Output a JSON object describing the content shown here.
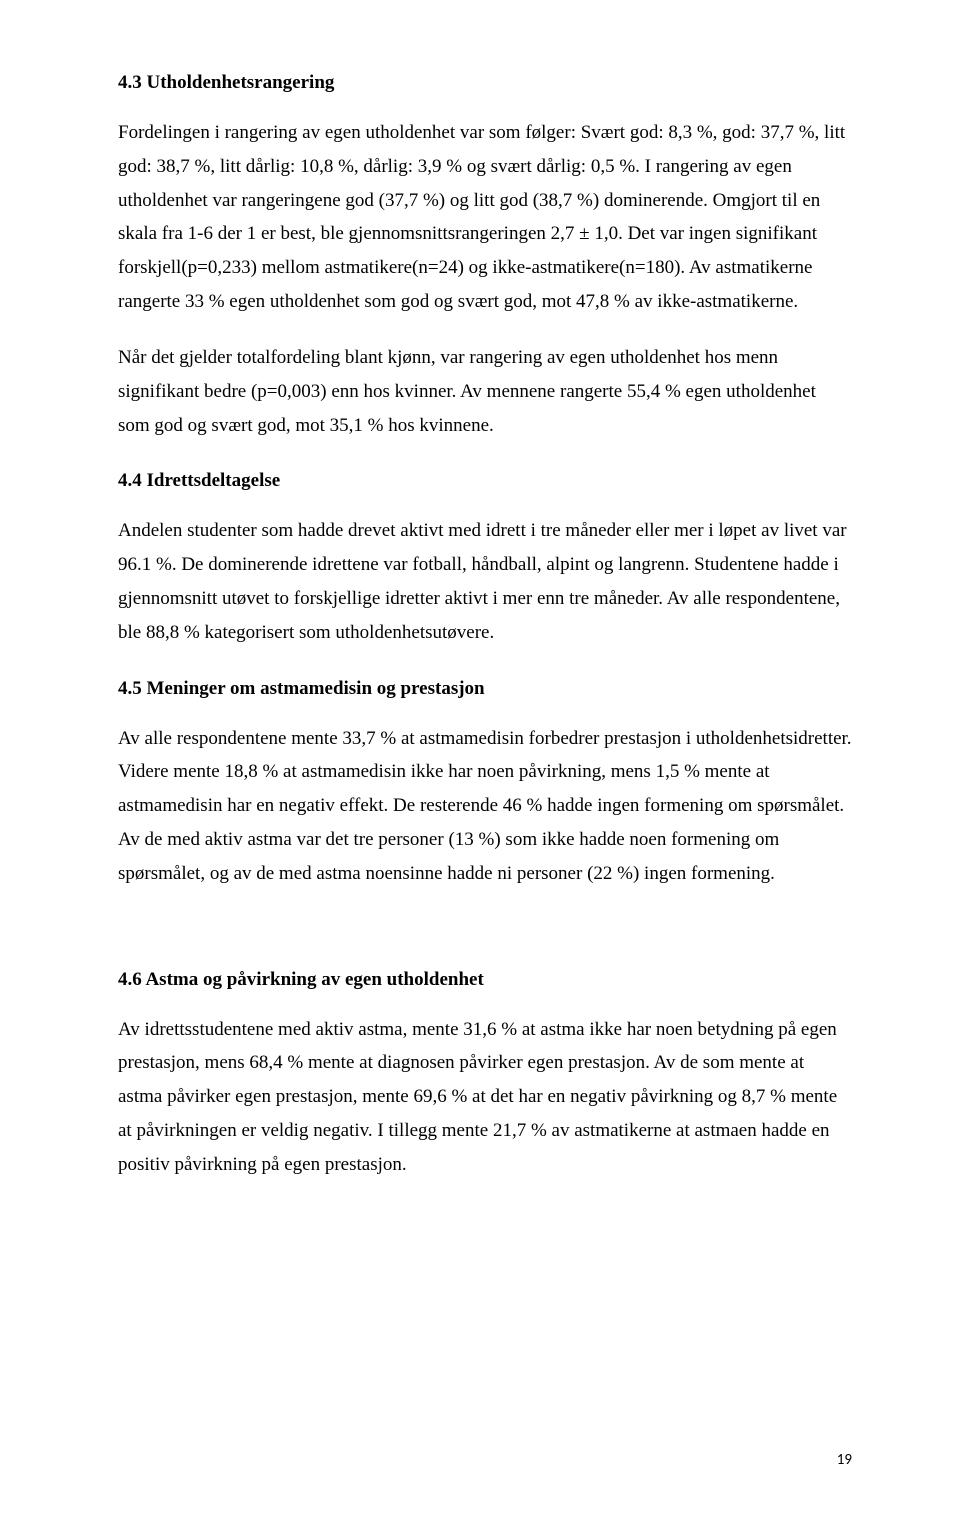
{
  "page_number": "19",
  "sections": [
    {
      "heading": "4.3 Utholdenhetsrangering",
      "paragraphs": [
        "Fordelingen i rangering av egen utholdenhet var som følger: Svært god: 8,3 %, god: 37,7 %, litt god: 38,7 %, litt dårlig: 10,8 %, dårlig: 3,9 % og svært dårlig: 0,5 %. I rangering av egen utholdenhet var rangeringene god (37,7 %) og litt god (38,7 %) dominerende. Omgjort til en skala fra 1-6 der 1 er best, ble gjennomsnittsrangeringen 2,7 ± 1,0. Det var ingen signifikant forskjell(p=0,233) mellom astmatikere(n=24) og ikke-astmatikere(n=180). Av astmatikerne rangerte 33 % egen utholdenhet som god og svært god, mot 47,8 % av ikke-astmatikerne.",
        "Når det gjelder totalfordeling blant kjønn, var rangering av egen utholdenhet hos menn signifikant bedre (p=0,003) enn hos kvinner. Av mennene rangerte 55,4 % egen utholdenhet som god og svært god, mot 35,1 % hos kvinnene."
      ]
    },
    {
      "heading": "4.4 Idrettsdeltagelse",
      "paragraphs": [
        "Andelen studenter som hadde drevet aktivt med idrett i tre måneder eller mer i løpet av livet var 96.1 %. De dominerende idrettene var fotball, håndball, alpint og langrenn. Studentene hadde i gjennomsnitt utøvet to forskjellige idretter aktivt i mer enn tre måneder. Av alle respondentene, ble 88,8 % kategorisert som utholdenhetsutøvere."
      ]
    },
    {
      "heading": "4.5 Meninger om astmamedisin og prestasjon",
      "paragraphs": [
        "Av alle respondentene mente 33,7 % at astmamedisin forbedrer prestasjon i utholdenhetsidretter. Videre mente 18,8 % at astmamedisin ikke har noen påvirkning, mens 1,5 % mente at astmamedisin har en negativ effekt. De resterende 46 % hadde ingen formening om spørsmålet. Av de med aktiv astma var det tre personer (13 %) som ikke hadde noen formening om spørsmålet, og av de med astma noensinne hadde ni personer (22 %) ingen formening."
      ]
    },
    {
      "heading": "4.6 Astma og påvirkning av egen utholdenhet",
      "paragraphs": [
        "Av idrettsstudentene med aktiv astma, mente 31,6 % at astma ikke har noen betydning på egen prestasjon, mens 68,4 % mente at diagnosen påvirker egen prestasjon. Av de som mente at astma påvirker egen prestasjon, mente 69,6 % at det har en negativ påvirkning og 8,7 % mente at påvirkningen er veldig negativ. I tillegg mente 21,7 % av astmatikerne at astmaen hadde en positiv påvirkning på egen prestasjon."
      ]
    }
  ]
}
